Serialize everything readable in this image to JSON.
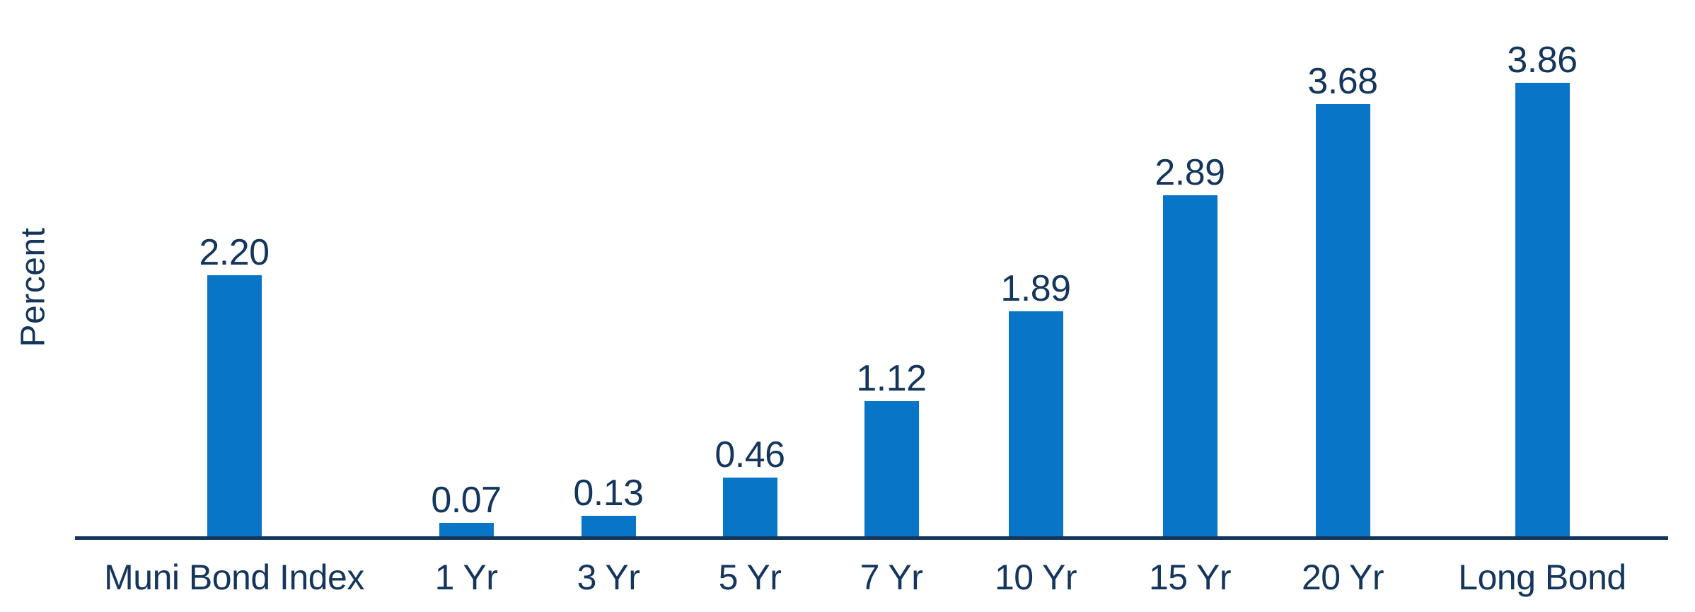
{
  "chart_data": {
    "type": "bar",
    "title": "",
    "xlabel": "",
    "ylabel": "Percent",
    "categories": [
      "Muni Bond Index",
      "1 Yr",
      "3 Yr",
      "5 Yr",
      "7 Yr",
      "10 Yr",
      "15 Yr",
      "20 Yr",
      "Long Bond"
    ],
    "values": [
      2.2,
      0.07,
      0.13,
      0.46,
      1.12,
      1.89,
      2.89,
      3.68,
      3.86
    ],
    "value_labels": [
      "2.20",
      "0.07",
      "0.13",
      "0.46",
      "1.12",
      "1.89",
      "2.89",
      "3.68",
      "3.86"
    ],
    "ylim": [
      0,
      4.1
    ],
    "grid": false,
    "legend_position": "none",
    "bar_color": "#0875C7",
    "text_color": "#14365C",
    "axis_color": "#14365C"
  }
}
